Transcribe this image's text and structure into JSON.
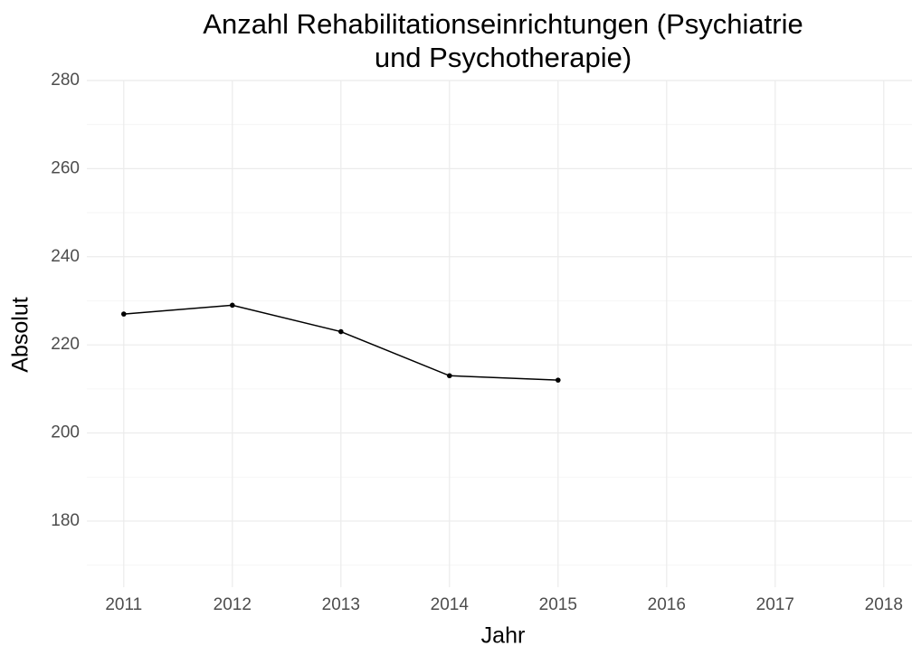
{
  "chart_data": {
    "type": "line",
    "title": [
      "Anzahl Rehabilitationseinrichtungen (Psychiatrie",
      "und Psychotherapie)"
    ],
    "x_label": "Jahr",
    "y_label": "Absolut",
    "x": [
      2011,
      2012,
      2013,
      2014,
      2015
    ],
    "values": [
      227,
      229,
      223,
      213,
      212
    ],
    "color": "#000000",
    "xlim": [
      2010.66,
      2018.26
    ],
    "xticks": [
      2011,
      2012,
      2013,
      2014,
      2015,
      2016,
      2017,
      2018
    ],
    "ylim": [
      165,
      280
    ],
    "yticks": [
      180,
      200,
      220,
      240,
      260,
      280
    ],
    "yminorticks": [
      170,
      190,
      210,
      230,
      250,
      270
    ],
    "grid": true,
    "points": true
  }
}
